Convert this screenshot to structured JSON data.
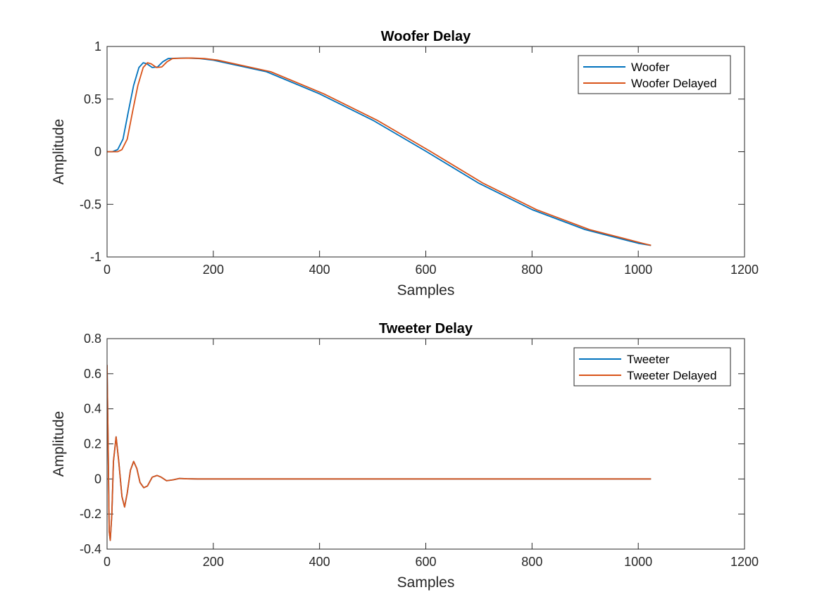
{
  "chart_data": [
    {
      "type": "line",
      "title": "Woofer Delay",
      "xlabel": "Samples",
      "ylabel": "Amplitude",
      "xlim": [
        0,
        1200
      ],
      "ylim": [
        -1,
        1
      ],
      "xticks": [
        0,
        200,
        400,
        600,
        800,
        1000,
        1200
      ],
      "yticks": [
        -1,
        -0.5,
        0,
        0.5,
        1
      ],
      "legend_position": "top-right",
      "grid": false,
      "series": [
        {
          "name": "Woofer",
          "color": "#0072BD",
          "points": [
            [
              0,
              0
            ],
            [
              10,
              0
            ],
            [
              20,
              0.02
            ],
            [
              30,
              0.12
            ],
            [
              40,
              0.38
            ],
            [
              50,
              0.63
            ],
            [
              60,
              0.8
            ],
            [
              68,
              0.845
            ],
            [
              75,
              0.835
            ],
            [
              85,
              0.8
            ],
            [
              95,
              0.805
            ],
            [
              105,
              0.855
            ],
            [
              115,
              0.885
            ],
            [
              130,
              0.888
            ],
            [
              150,
              0.89
            ],
            [
              175,
              0.885
            ],
            [
              200,
              0.87
            ],
            [
              300,
              0.76
            ],
            [
              400,
              0.55
            ],
            [
              500,
              0.3
            ],
            [
              600,
              0.005
            ],
            [
              700,
              -0.3
            ],
            [
              800,
              -0.55
            ],
            [
              900,
              -0.74
            ],
            [
              1000,
              -0.87
            ],
            [
              1024,
              -0.89
            ]
          ]
        },
        {
          "name": "Woofer Delayed",
          "color": "#D95319",
          "points": [
            [
              0,
              0
            ],
            [
              20,
              0
            ],
            [
              28,
              0.02
            ],
            [
              38,
              0.12
            ],
            [
              48,
              0.38
            ],
            [
              58,
              0.63
            ],
            [
              68,
              0.8
            ],
            [
              76,
              0.845
            ],
            [
              83,
              0.835
            ],
            [
              93,
              0.8
            ],
            [
              103,
              0.805
            ],
            [
              113,
              0.855
            ],
            [
              123,
              0.885
            ],
            [
              138,
              0.888
            ],
            [
              158,
              0.89
            ],
            [
              183,
              0.885
            ],
            [
              208,
              0.87
            ],
            [
              308,
              0.76
            ],
            [
              408,
              0.55
            ],
            [
              508,
              0.3
            ],
            [
              608,
              0.005
            ],
            [
              708,
              -0.3
            ],
            [
              808,
              -0.55
            ],
            [
              908,
              -0.74
            ],
            [
              1008,
              -0.87
            ],
            [
              1024,
              -0.89
            ]
          ]
        }
      ]
    },
    {
      "type": "line",
      "title": "Tweeter Delay",
      "xlabel": "Samples",
      "ylabel": "Amplitude",
      "xlim": [
        0,
        1200
      ],
      "ylim": [
        -0.4,
        0.8
      ],
      "xticks": [
        0,
        200,
        400,
        600,
        800,
        1000,
        1200
      ],
      "yticks": [
        -0.4,
        -0.2,
        0,
        0.2,
        0.4,
        0.6,
        0.8
      ],
      "legend_position": "top-right",
      "grid": false,
      "series": [
        {
          "name": "Tweeter",
          "color": "#0072BD",
          "points": [
            [
              0,
              0.65
            ],
            [
              2,
              0.2
            ],
            [
              4,
              -0.3
            ],
            [
              6,
              -0.35
            ],
            [
              9,
              -0.2
            ],
            [
              12,
              0.1
            ],
            [
              17,
              0.24
            ],
            [
              22,
              0.1
            ],
            [
              28,
              -0.1
            ],
            [
              33,
              -0.16
            ],
            [
              38,
              -0.08
            ],
            [
              44,
              0.05
            ],
            [
              50,
              0.1
            ],
            [
              56,
              0.06
            ],
            [
              62,
              -0.02
            ],
            [
              69,
              -0.05
            ],
            [
              76,
              -0.04
            ],
            [
              85,
              0.01
            ],
            [
              94,
              0.02
            ],
            [
              102,
              0.01
            ],
            [
              112,
              -0.01
            ],
            [
              124,
              -0.005
            ],
            [
              136,
              0.003
            ],
            [
              150,
              0.001
            ],
            [
              170,
              0
            ],
            [
              200,
              0
            ],
            [
              400,
              0
            ],
            [
              600,
              0
            ],
            [
              800,
              0
            ],
            [
              1024,
              0
            ]
          ]
        },
        {
          "name": "Tweeter Delayed",
          "color": "#D95319",
          "points": [
            [
              0,
              0.65
            ],
            [
              2,
              0.2
            ],
            [
              4,
              -0.3
            ],
            [
              6,
              -0.35
            ],
            [
              9,
              -0.2
            ],
            [
              12,
              0.1
            ],
            [
              17,
              0.24
            ],
            [
              22,
              0.1
            ],
            [
              28,
              -0.1
            ],
            [
              33,
              -0.16
            ],
            [
              38,
              -0.08
            ],
            [
              44,
              0.05
            ],
            [
              50,
              0.1
            ],
            [
              56,
              0.06
            ],
            [
              62,
              -0.02
            ],
            [
              69,
              -0.05
            ],
            [
              76,
              -0.04
            ],
            [
              85,
              0.01
            ],
            [
              94,
              0.02
            ],
            [
              102,
              0.01
            ],
            [
              112,
              -0.01
            ],
            [
              124,
              -0.005
            ],
            [
              136,
              0.003
            ],
            [
              150,
              0.001
            ],
            [
              170,
              0
            ],
            [
              200,
              0
            ],
            [
              400,
              0
            ],
            [
              600,
              0
            ],
            [
              800,
              0
            ],
            [
              1024,
              0
            ]
          ]
        }
      ]
    }
  ]
}
